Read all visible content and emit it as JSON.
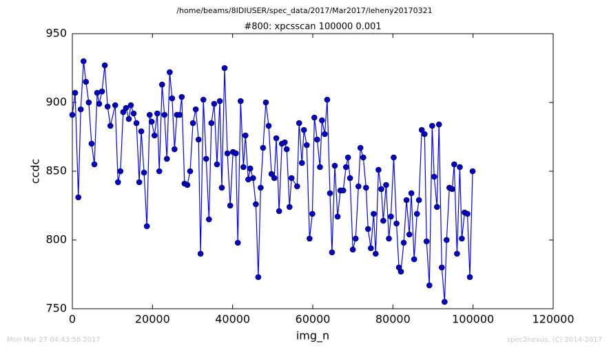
{
  "chart_data": {
    "type": "line",
    "suptitle": "/home/beams/8IDIUSER/spec_data/2017/Mar2017/leheny20170321",
    "title": "#800: xpcsscan 100000 0.001",
    "x_label": "img_n",
    "y_label": "ccdc",
    "footer_left": "Mon Mar 27 04:43:58 2017",
    "footer_right": "spec2nexus, (C) 2014-2017",
    "x": [
      0,
      700,
      1500,
      2100,
      2800,
      3400,
      4100,
      4800,
      5500,
      6200,
      6700,
      7400,
      8100,
      8800,
      9500,
      10700,
      11400,
      12000,
      12700,
      13400,
      14100,
      14600,
      15300,
      16000,
      16700,
      17200,
      17900,
      18600,
      19300,
      19800,
      20500,
      21200,
      21700,
      22400,
      23000,
      23600,
      24300,
      24900,
      25500,
      26100,
      26800,
      27300,
      28000,
      28700,
      29400,
      30100,
      30800,
      31500,
      32000,
      32700,
      33400,
      34100,
      34700,
      35400,
      36100,
      36800,
      37300,
      38000,
      38700,
      39400,
      40100,
      40800,
      41300,
      42000,
      42700,
      43200,
      43900,
      44400,
      45100,
      45800,
      46400,
      47000,
      47600,
      48300,
      49000,
      49700,
      50400,
      50900,
      51600,
      52300,
      53000,
      53500,
      54200,
      54700,
      56100,
      56600,
      57300,
      57800,
      58500,
      59200,
      59900,
      60400,
      61100,
      61800,
      62300,
      63000,
      63600,
      64300,
      64800,
      65500,
      66200,
      66900,
      67600,
      68300,
      68800,
      69300,
      70000,
      70700,
      71400,
      71900,
      72600,
      73300,
      73800,
      74500,
      75200,
      75700,
      76400,
      77100,
      77600,
      78300,
      79000,
      79500,
      80200,
      80900,
      81500,
      82000,
      82700,
      83400,
      84100,
      84600,
      85300,
      86000,
      86500,
      87200,
      87900,
      88400,
      89100,
      89800,
      90300,
      91000,
      91500,
      92200,
      92900,
      93400,
      94100,
      94800,
      95300,
      96000,
      96700,
      97200,
      97900,
      98600,
      99200,
      99900
    ],
    "series": [
      {
        "color": "#0000ff",
        "marker_color": "#0000cc",
        "values": [
          891,
          907,
          831,
          895,
          930,
          915,
          900,
          870,
          855,
          907,
          899,
          908,
          927,
          897,
          883,
          898,
          842,
          850,
          893,
          896,
          888,
          898,
          892,
          885,
          842,
          879,
          849,
          810,
          891,
          886,
          876,
          892,
          850,
          913,
          891,
          859,
          922,
          903,
          866,
          891,
          891,
          904,
          841,
          840,
          850,
          885,
          895,
          873,
          790,
          902,
          859,
          815,
          885,
          899,
          855,
          901,
          838,
          925,
          863,
          825,
          864,
          863,
          798,
          901,
          853,
          876,
          844,
          852,
          845,
          826,
          773,
          838,
          867,
          900,
          883,
          848,
          845,
          874,
          821,
          870,
          871,
          866,
          824,
          845,
          839,
          885,
          856,
          880,
          869,
          801,
          819,
          889,
          873,
          853,
          887,
          877,
          902,
          834,
          791,
          854,
          817,
          836,
          836,
          853,
          860,
          845,
          793,
          801,
          839,
          867,
          860,
          838,
          808,
          794,
          819,
          790,
          851,
          837,
          814,
          840,
          801,
          817,
          860,
          812,
          780,
          777,
          798,
          829,
          804,
          834,
          786,
          819,
          829,
          880,
          877,
          799,
          767,
          883,
          846,
          824,
          884,
          780,
          755,
          800,
          838,
          837,
          855,
          790,
          853,
          801,
          820,
          819,
          773,
          850
        ]
      }
    ],
    "xlim": [
      0,
      120000
    ],
    "xticks": [
      0,
      20000,
      40000,
      60000,
      80000,
      100000,
      120000
    ],
    "ylim": [
      750,
      950
    ],
    "yticks": [
      750,
      800,
      850,
      900,
      950
    ],
    "grid": false
  }
}
